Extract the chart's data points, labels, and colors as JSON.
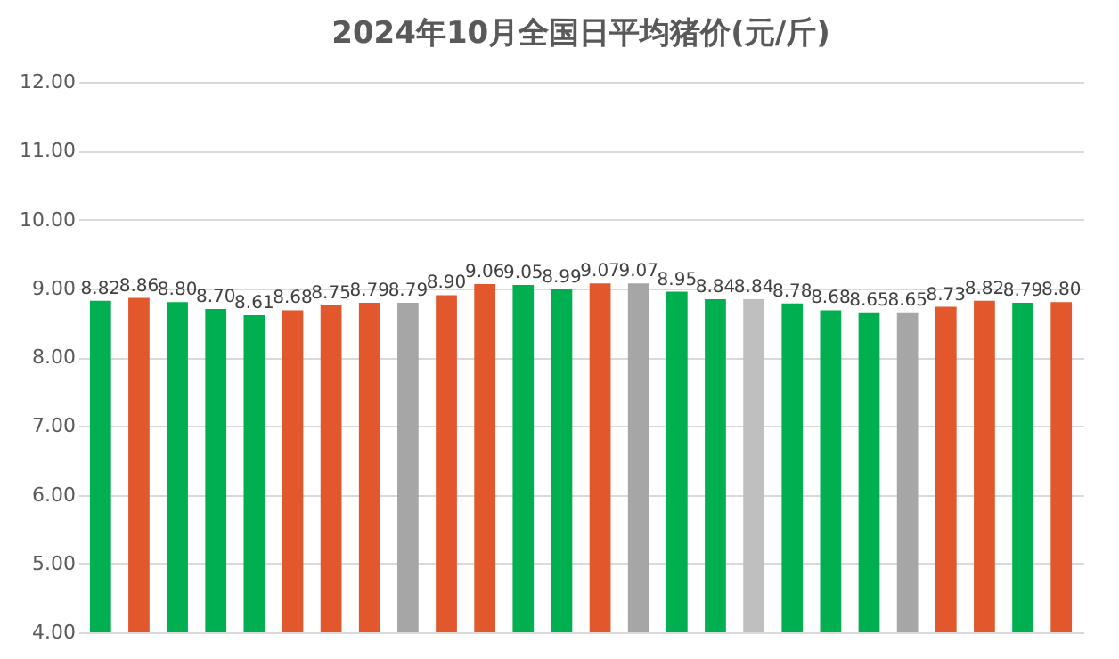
{
  "chart_data": {
    "type": "bar",
    "title": "2024年10月全国日平均猪价(元/斤)",
    "categories": [
      null,
      null,
      null,
      null,
      null,
      null,
      null,
      null,
      null,
      null,
      null,
      null,
      null,
      null,
      null,
      null,
      null,
      null,
      null,
      null,
      null,
      null,
      null,
      null,
      null,
      null
    ],
    "values": [
      8.82,
      8.86,
      8.8,
      8.7,
      8.61,
      8.68,
      8.75,
      8.79,
      8.79,
      8.9,
      9.06,
      9.05,
      8.99,
      9.07,
      9.07,
      8.95,
      8.84,
      8.84,
      8.78,
      8.68,
      8.65,
      8.65,
      8.73,
      8.82,
      8.79,
      8.8
    ],
    "value_labels": [
      "8.82",
      "8.86",
      "8.80",
      "8.70",
      "8.61",
      "8.68",
      "8.75",
      "8.79",
      "8.79",
      "8.90",
      "9.06",
      "9.05",
      "8.99",
      "9.07",
      "9.07",
      "8.95",
      "8.84",
      "8.84",
      "8.78",
      "8.68",
      "8.65",
      "8.65",
      "8.73",
      "8.82",
      "8.79",
      "8.80"
    ],
    "colors": [
      "#00b050",
      "#e2572b",
      "#00b050",
      "#00b050",
      "#00b050",
      "#e2572b",
      "#e2572b",
      "#e2572b",
      "#a6a6a6",
      "#e2572b",
      "#e2572b",
      "#00b050",
      "#00b050",
      "#e2572b",
      "#a6a6a6",
      "#00b050",
      "#00b050",
      "#bfbfbf",
      "#00b050",
      "#00b050",
      "#00b050",
      "#a6a6a6",
      "#e2572b",
      "#e2572b",
      "#00b050",
      "#e2572b"
    ],
    "ylim": [
      4,
      12
    ],
    "yticks": [
      {
        "value": 4,
        "label": "4.00"
      },
      {
        "value": 5,
        "label": "5.00"
      },
      {
        "value": 6,
        "label": "6.00"
      },
      {
        "value": 7,
        "label": "7.00"
      },
      {
        "value": 8,
        "label": "8.00"
      },
      {
        "value": 9,
        "label": "9.00"
      },
      {
        "value": 10,
        "label": "10.00"
      },
      {
        "value": 11,
        "label": "11.00"
      },
      {
        "value": 12,
        "label": "12.00"
      }
    ],
    "grid": "y",
    "tick_labels": "y"
  }
}
